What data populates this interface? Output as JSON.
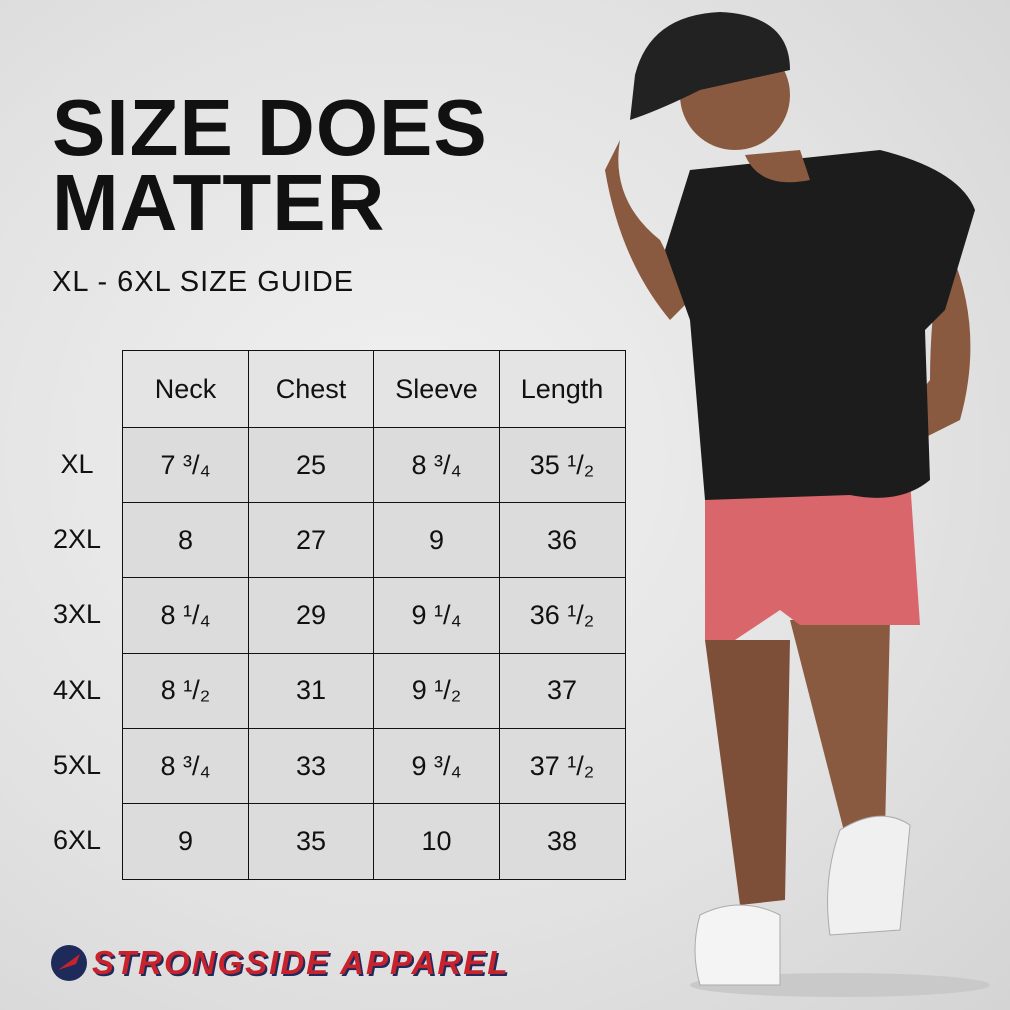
{
  "header": {
    "title_line1": "SIZE DOES",
    "title_line2": "MATTER",
    "subtitle": "XL - 6XL SIZE GUIDE"
  },
  "table": {
    "columns": [
      "Neck",
      "Chest",
      "Sleeve",
      "Length"
    ],
    "rows": [
      {
        "size": "XL",
        "cells": [
          "7 ³/₄",
          "25",
          "8 ³/₄",
          "35 ¹/₂"
        ]
      },
      {
        "size": "2XL",
        "cells": [
          "8",
          "27",
          "9",
          "36"
        ]
      },
      {
        "size": "3XL",
        "cells": [
          "8 ¹/₄",
          "29",
          "9 ¹/₄",
          "36 ¹/₂"
        ]
      },
      {
        "size": "4XL",
        "cells": [
          "8 ¹/₂",
          "31",
          "9 ¹/₂",
          "37"
        ]
      },
      {
        "size": "5XL",
        "cells": [
          "8 ³/₄",
          "33",
          "9 ³/₄",
          "37 ¹/₂"
        ]
      },
      {
        "size": "6XL",
        "cells": [
          "9",
          "35",
          "10",
          "38"
        ]
      }
    ]
  },
  "brand": "STRONGSIDE APPAREL"
}
